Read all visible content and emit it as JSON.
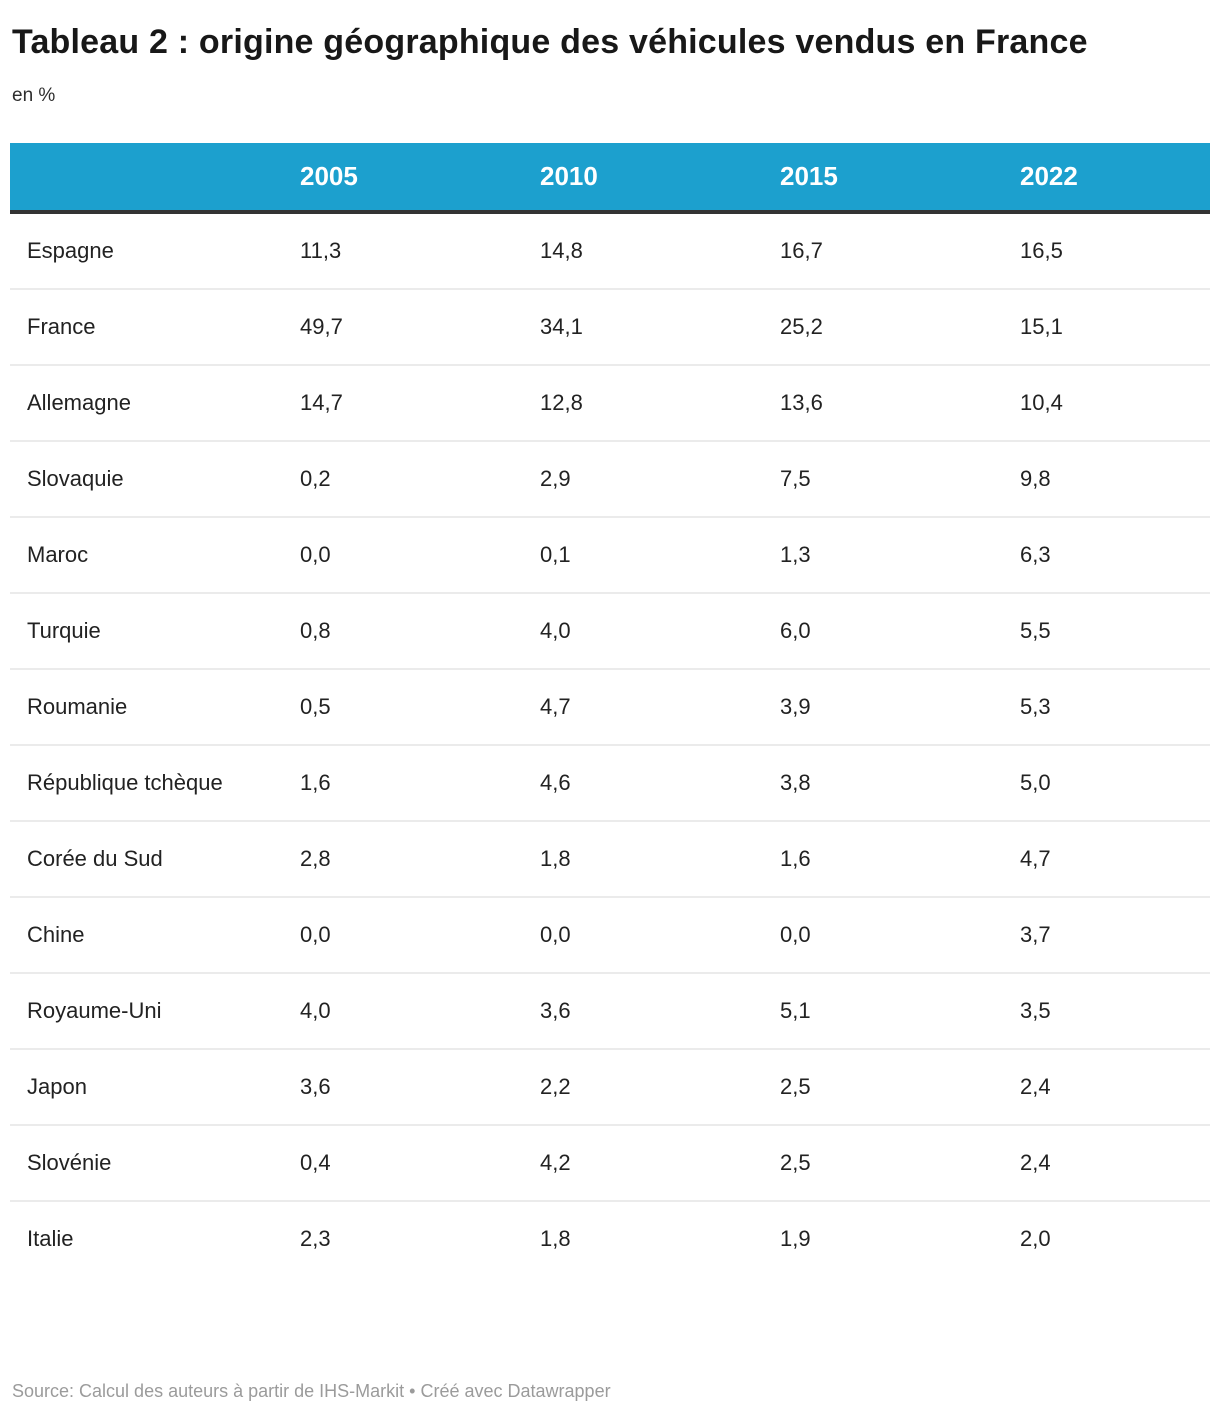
{
  "title": "Tableau 2 : origine géographique des véhicules vendus en France",
  "subtitle": "en %",
  "footer": {
    "source_text": "Source: Calcul des auteurs à partir de IHS-Markit",
    "separator": " • ",
    "credit_text": "Créé avec Datawrapper"
  },
  "colors": {
    "header_bg": "#1CA0CE",
    "header_text": "#ffffff",
    "header_border": "#333333",
    "row_divider": "#ebebeb",
    "body_text": "#222222",
    "footer_text": "#9b9b9b"
  },
  "chart_data": {
    "type": "table",
    "title": "Tableau 2 : origine géographique des véhicules vendus en France",
    "subtitle": "en %",
    "unit": "%",
    "columns": [
      "",
      "2005",
      "2010",
      "2015",
      "2022"
    ],
    "rows": [
      {
        "label": "Espagne",
        "values": [
          "11,3",
          "14,8",
          "16,7",
          "16,5"
        ]
      },
      {
        "label": "France",
        "values": [
          "49,7",
          "34,1",
          "25,2",
          "15,1"
        ]
      },
      {
        "label": "Allemagne",
        "values": [
          "14,7",
          "12,8",
          "13,6",
          "10,4"
        ]
      },
      {
        "label": "Slovaquie",
        "values": [
          "0,2",
          "2,9",
          "7,5",
          "9,8"
        ]
      },
      {
        "label": "Maroc",
        "values": [
          "0,0",
          "0,1",
          "1,3",
          "6,3"
        ]
      },
      {
        "label": "Turquie",
        "values": [
          "0,8",
          "4,0",
          "6,0",
          "5,5"
        ]
      },
      {
        "label": "Roumanie",
        "values": [
          "0,5",
          "4,7",
          "3,9",
          "5,3"
        ]
      },
      {
        "label": "République tchèque",
        "values": [
          "1,6",
          "4,6",
          "3,8",
          "5,0"
        ]
      },
      {
        "label": "Corée du Sud",
        "values": [
          "2,8",
          "1,8",
          "1,6",
          "4,7"
        ]
      },
      {
        "label": "Chine",
        "values": [
          "0,0",
          "0,0",
          "0,0",
          "3,7"
        ]
      },
      {
        "label": "Royaume-Uni",
        "values": [
          "4,0",
          "3,6",
          "5,1",
          "3,5"
        ]
      },
      {
        "label": "Japon",
        "values": [
          "3,6",
          "2,2",
          "2,5",
          "2,4"
        ]
      },
      {
        "label": "Slovénie",
        "values": [
          "0,4",
          "4,2",
          "2,5",
          "2,4"
        ]
      },
      {
        "label": "Italie",
        "values": [
          "2,3",
          "1,8",
          "1,9",
          "2,0"
        ]
      }
    ]
  }
}
